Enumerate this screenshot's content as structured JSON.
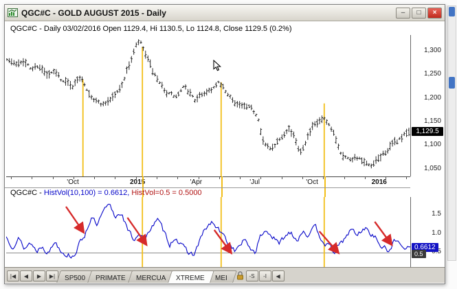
{
  "window": {
    "title": "QGC#C - GOLD AUGUST 2015 - Daily",
    "controls": {
      "minimize": "–",
      "maximize": "□",
      "close": "×"
    }
  },
  "upper_panel": {
    "info_line": "QGC#C - Daily 03/02/2016 Open 1129.4, Hi 1130.5, Lo 1124.8, Close 1129.5 (0.2%)",
    "price_badge": "1,129.5"
  },
  "lower_panel": {
    "symbol_prefix": "QGC#C - ",
    "study1": "HistVol(10,100) = 0.6612,",
    "study2": "HistVol=0.5 = 0.5000",
    "value_badge": "0.6612",
    "ref_badge": "0.5",
    "ref_tick": "0.5"
  },
  "tab_bar": {
    "nav_buttons": [
      "|◀",
      "◀",
      "▶",
      "▶|"
    ],
    "tabs": [
      {
        "label": "SP500",
        "selected": false
      },
      {
        "label": "PRIMATE",
        "selected": false
      },
      {
        "label": "MERCUA",
        "selected": false
      },
      {
        "label": "XTREME",
        "selected": true
      },
      {
        "label": "MEI",
        "selected": false
      }
    ],
    "side_buttons": [
      "-S",
      "-I",
      "◀"
    ]
  },
  "chart_data": [
    {
      "type": "ohlc",
      "symbol": "QGC#C",
      "period": "Daily",
      "ylim": [
        1035,
        1335
      ],
      "yticks": [
        {
          "v": 1300,
          "label": "1,300"
        },
        {
          "v": 1250,
          "label": "1,250"
        },
        {
          "v": 1200,
          "label": "1,200"
        },
        {
          "v": 1150,
          "label": "1,150"
        },
        {
          "v": 1100,
          "label": "1,100"
        },
        {
          "v": 1050,
          "label": "1,050"
        }
      ],
      "xticks": [
        {
          "x": 0.165,
          "label": "'Oct",
          "bold": false
        },
        {
          "x": 0.325,
          "label": "2015",
          "bold": true
        },
        {
          "x": 0.47,
          "label": "'Apr",
          "bold": false
        },
        {
          "x": 0.615,
          "label": "'Jul",
          "bold": false
        },
        {
          "x": 0.757,
          "label": "'Oct",
          "bold": false
        },
        {
          "x": 0.923,
          "label": "2016",
          "bold": true
        }
      ],
      "last_close": 1129.5,
      "anchors": [
        [
          0.0,
          1287
        ],
        [
          0.02,
          1272
        ],
        [
          0.04,
          1284
        ],
        [
          0.06,
          1262
        ],
        [
          0.08,
          1272
        ],
        [
          0.1,
          1248
        ],
        [
          0.12,
          1255
        ],
        [
          0.14,
          1237
        ],
        [
          0.165,
          1228
        ],
        [
          0.185,
          1248
        ],
        [
          0.2,
          1222
        ],
        [
          0.22,
          1196
        ],
        [
          0.24,
          1188
        ],
        [
          0.26,
          1202
        ],
        [
          0.28,
          1218
        ],
        [
          0.3,
          1262
        ],
        [
          0.32,
          1308
        ],
        [
          0.33,
          1322
        ],
        [
          0.345,
          1292
        ],
        [
          0.36,
          1262
        ],
        [
          0.38,
          1228
        ],
        [
          0.4,
          1212
        ],
        [
          0.42,
          1202
        ],
        [
          0.44,
          1222
        ],
        [
          0.46,
          1208
        ],
        [
          0.47,
          1196
        ],
        [
          0.49,
          1212
        ],
        [
          0.51,
          1222
        ],
        [
          0.53,
          1232
        ],
        [
          0.55,
          1205
        ],
        [
          0.57,
          1192
        ],
        [
          0.59,
          1182
        ],
        [
          0.61,
          1176
        ],
        [
          0.625,
          1162
        ],
        [
          0.64,
          1104
        ],
        [
          0.655,
          1092
        ],
        [
          0.67,
          1108
        ],
        [
          0.685,
          1124
        ],
        [
          0.7,
          1142
        ],
        [
          0.715,
          1118
        ],
        [
          0.73,
          1088
        ],
        [
          0.745,
          1116
        ],
        [
          0.76,
          1138
        ],
        [
          0.787,
          1156
        ],
        [
          0.8,
          1140
        ],
        [
          0.815,
          1122
        ],
        [
          0.83,
          1088
        ],
        [
          0.85,
          1072
        ],
        [
          0.87,
          1078
        ],
        [
          0.89,
          1062
        ],
        [
          0.905,
          1052
        ],
        [
          0.92,
          1066
        ],
        [
          0.94,
          1086
        ],
        [
          0.96,
          1102
        ],
        [
          0.98,
          1116
        ],
        [
          1.0,
          1129.5
        ]
      ],
      "vlines": [
        {
          "x": 0.19,
          "from": 1240
        },
        {
          "x": 0.337,
          "from": 1310
        },
        {
          "x": 0.532,
          "from": 1235
        },
        {
          "x": 0.787,
          "from": 1190
        }
      ],
      "colors": {
        "bars": "#151515",
        "vline": "#f2be18"
      }
    },
    {
      "type": "line",
      "name": "HistVol(10,100)",
      "last_value": 0.6612,
      "ref_value": 0.5,
      "ylim": [
        0.13,
        1.97
      ],
      "yticks": [
        {
          "v": 1.5,
          "label": "1.5"
        },
        {
          "v": 1.0,
          "label": "1.0"
        },
        {
          "v": 0.5,
          "label": "0.5"
        }
      ],
      "anchors": [
        [
          0.0,
          0.92
        ],
        [
          0.015,
          0.72
        ],
        [
          0.03,
          0.88
        ],
        [
          0.045,
          0.62
        ],
        [
          0.06,
          0.78
        ],
        [
          0.075,
          0.55
        ],
        [
          0.09,
          0.72
        ],
        [
          0.105,
          0.5
        ],
        [
          0.12,
          0.82
        ],
        [
          0.135,
          0.6
        ],
        [
          0.15,
          0.48
        ],
        [
          0.165,
          0.42
        ],
        [
          0.18,
          0.7
        ],
        [
          0.195,
          1.0
        ],
        [
          0.21,
          1.45
        ],
        [
          0.225,
          1.2
        ],
        [
          0.24,
          1.55
        ],
        [
          0.255,
          1.75
        ],
        [
          0.27,
          1.45
        ],
        [
          0.285,
          1.6
        ],
        [
          0.3,
          1.1
        ],
        [
          0.315,
          0.85
        ],
        [
          0.33,
          1.05
        ],
        [
          0.345,
          0.8
        ],
        [
          0.36,
          1.25
        ],
        [
          0.375,
          1.35
        ],
        [
          0.39,
          1.05
        ],
        [
          0.405,
          0.75
        ],
        [
          0.42,
          0.95
        ],
        [
          0.435,
          0.65
        ],
        [
          0.45,
          0.52
        ],
        [
          0.465,
          0.45
        ],
        [
          0.48,
          0.85
        ],
        [
          0.495,
          1.15
        ],
        [
          0.51,
          1.3
        ],
        [
          0.525,
          1.1
        ],
        [
          0.54,
          0.9
        ],
        [
          0.555,
          0.7
        ],
        [
          0.57,
          0.55
        ],
        [
          0.585,
          0.82
        ],
        [
          0.6,
          0.68
        ],
        [
          0.615,
          0.52
        ],
        [
          0.63,
          0.95
        ],
        [
          0.645,
          1.1
        ],
        [
          0.66,
          0.92
        ],
        [
          0.675,
          0.7
        ],
        [
          0.69,
          0.95
        ],
        [
          0.705,
          1.08
        ],
        [
          0.72,
          0.85
        ],
        [
          0.735,
          1.12
        ],
        [
          0.75,
          0.95
        ],
        [
          0.765,
          1.15
        ],
        [
          0.78,
          0.9
        ],
        [
          0.795,
          0.7
        ],
        [
          0.81,
          0.52
        ],
        [
          0.825,
          0.68
        ],
        [
          0.84,
          0.92
        ],
        [
          0.855,
          1.12
        ],
        [
          0.87,
          0.95
        ],
        [
          0.885,
          1.18
        ],
        [
          0.9,
          1.05
        ],
        [
          0.915,
          0.88
        ],
        [
          0.93,
          0.65
        ],
        [
          0.945,
          0.55
        ],
        [
          0.96,
          0.82
        ],
        [
          0.975,
          0.72
        ],
        [
          1.0,
          0.6612
        ]
      ],
      "vlines": [
        0.337,
        0.532,
        0.787
      ],
      "arrows": [
        [
          0.148,
          14,
          0.19,
          50
        ],
        [
          0.3,
          30,
          0.345,
          68
        ],
        [
          0.515,
          48,
          0.555,
          80
        ],
        [
          0.775,
          50,
          0.82,
          80
        ],
        [
          0.912,
          36,
          0.952,
          68
        ]
      ],
      "colors": {
        "line": "#0202c8",
        "ref": "#888888",
        "arrow": "#d62a2a",
        "vline": "#f2be18",
        "badge": "#1212c4",
        "ref_badge": "#3a3a3a"
      }
    }
  ]
}
